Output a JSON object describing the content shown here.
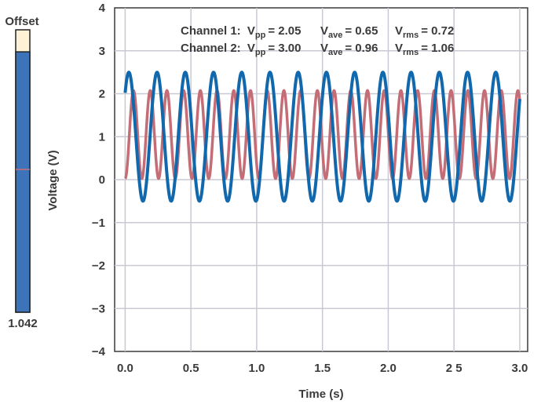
{
  "offset": {
    "title": "Offset",
    "value": "1.042",
    "fill_fraction": 0.922,
    "colors": {
      "fill": "#3d74b9",
      "empty": "#fdf1d6",
      "border": "#222222",
      "marker": "#c8707a"
    }
  },
  "stats": {
    "ch1": {
      "label": "Channel 1:",
      "vpp_sub": "pp",
      "vpp": "= 2.05",
      "vave_sub": "ave",
      "vave": "= 0.65",
      "vrms_sub": "rms",
      "vrms": "= 0.72"
    },
    "ch2": {
      "label": "Channel 2:",
      "vpp_sub": "pp",
      "vpp": "= 3.00",
      "vave_sub": "ave",
      "vave": "= 0.96",
      "vrms_sub": "rms",
      "vrms": "= 1.06"
    },
    "v": "V"
  },
  "chart_data": {
    "type": "line",
    "title": "",
    "xlabel": "Time (s)",
    "ylabel": "Voltage (V)",
    "xlim": [
      -0.08,
      3.06
    ],
    "ylim": [
      -4,
      4
    ],
    "grid": true,
    "xticks": [
      0.0,
      0.5,
      1.0,
      1.5,
      2.0,
      2.5,
      3.0
    ],
    "xtick_labels": [
      "0.0",
      "0.5",
      "1.0",
      "1.5",
      "2.0",
      "2 5",
      "3.0"
    ],
    "yticks": [
      -4,
      -3,
      -2,
      -1,
      0,
      1,
      2,
      3,
      4
    ],
    "ytick_labels": [
      "−4",
      "−3",
      "−2",
      "−1",
      "0",
      "1",
      "2",
      "3",
      "4"
    ],
    "series": [
      {
        "name": "Channel 1",
        "color": "#c46d76",
        "offset": 1.05,
        "amplitude": 1.025,
        "frequency": 7.87,
        "phase": -1.5708,
        "x_start": 0.0,
        "x_end": 3.0
      },
      {
        "name": "Channel 2",
        "color": "#1168ac",
        "offset": 1.0,
        "amplitude": 1.5,
        "frequency": 4.66,
        "phase": 0.75,
        "x_start": 0.0,
        "x_end": 3.0
      }
    ]
  }
}
